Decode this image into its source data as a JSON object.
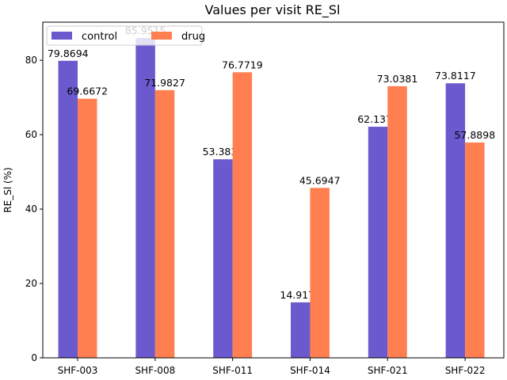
{
  "chart_data": {
    "type": "bar",
    "title": "Values per visit RE_Sl",
    "xlabel": "",
    "ylabel": "RE_Sl (%)",
    "categories": [
      "SHF-003",
      "SHF-008",
      "SHF-011",
      "SHF-014",
      "SHF-021",
      "SHF-022"
    ],
    "series": [
      {
        "name": "control",
        "color": "#6a5acd",
        "values": [
          79.8694,
          85.9515,
          53.3837,
          14.9176,
          62.1379,
          73.8117
        ],
        "labels": [
          "79.8694",
          "85.9515",
          "53.3837",
          "14.9176",
          "62.1379",
          "73.8117"
        ]
      },
      {
        "name": "drug",
        "color": "#ff7f50",
        "values": [
          69.6672,
          71.9827,
          76.7719,
          45.6947,
          73.0381,
          57.8898
        ],
        "labels": [
          "69.6672",
          "71.9827",
          "76.7719",
          "45.6947",
          "73.0381",
          "57.8898"
        ]
      }
    ],
    "ylim": [
      0,
      90.25
    ],
    "yticks": [
      0,
      20,
      40,
      60,
      80
    ],
    "ytick_labels": [
      "0",
      "20",
      "40",
      "60",
      "80"
    ],
    "grid": false,
    "legend_position": "top-left"
  }
}
